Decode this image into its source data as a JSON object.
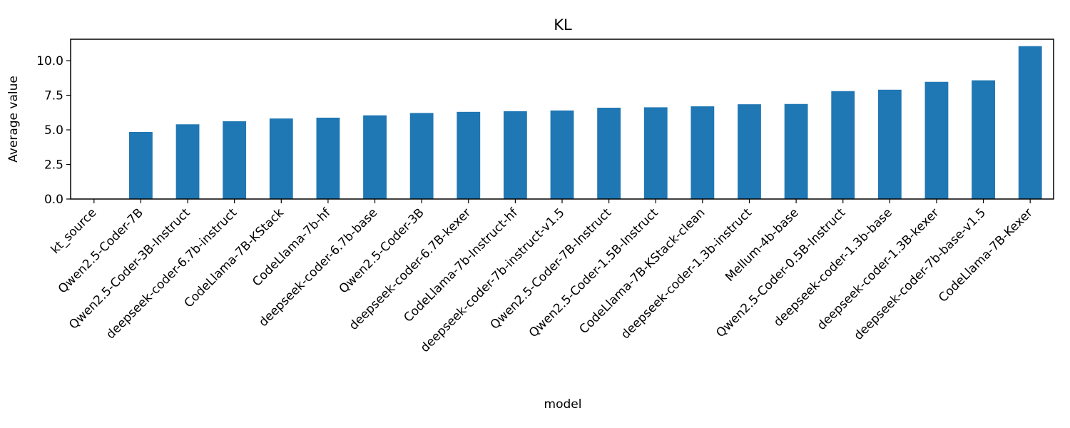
{
  "chart_data": {
    "type": "bar",
    "title": "KL",
    "xlabel": "model",
    "ylabel": "Average value",
    "ylim": [
      0,
      11.55
    ],
    "yticks": [
      "0.0",
      "2.5",
      "5.0",
      "7.5",
      "10.0"
    ],
    "grid": false,
    "bar_color": "#1f77b4",
    "categories": [
      "kt_source",
      "Qwen2.5-Coder-7B",
      "Qwen2.5-Coder-3B-Instruct",
      "deepseek-coder-6.7b-instruct",
      "CodeLlama-7B-KStack",
      "CodeLlama-7b-hf",
      "deepseek-coder-6.7b-base",
      "Qwen2.5-Coder-3B",
      "deepseek-coder-6.7B-kexer",
      "CodeLlama-7b-Instruct-hf",
      "deepseek-coder-7b-instruct-v1.5",
      "Qwen2.5-Coder-7B-Instruct",
      "Qwen2.5-Coder-1.5B-Instruct",
      "CodeLlama-7B-KStack-clean",
      "deepseek-coder-1.3b-instruct",
      "Mellum-4b-base",
      "Qwen2.5-Coder-0.5B-Instruct",
      "deepseek-coder-1.3b-base",
      "deepseek-coder-1.3B-kexer",
      "deepseek-coder-7b-base-v1.5",
      "CodeLlama-7B-Kexer"
    ],
    "values": [
      0.0,
      4.85,
      5.4,
      5.62,
      5.82,
      5.88,
      6.05,
      6.22,
      6.3,
      6.35,
      6.4,
      6.6,
      6.63,
      6.7,
      6.85,
      6.87,
      7.8,
      7.9,
      8.47,
      8.58,
      11.05
    ]
  }
}
